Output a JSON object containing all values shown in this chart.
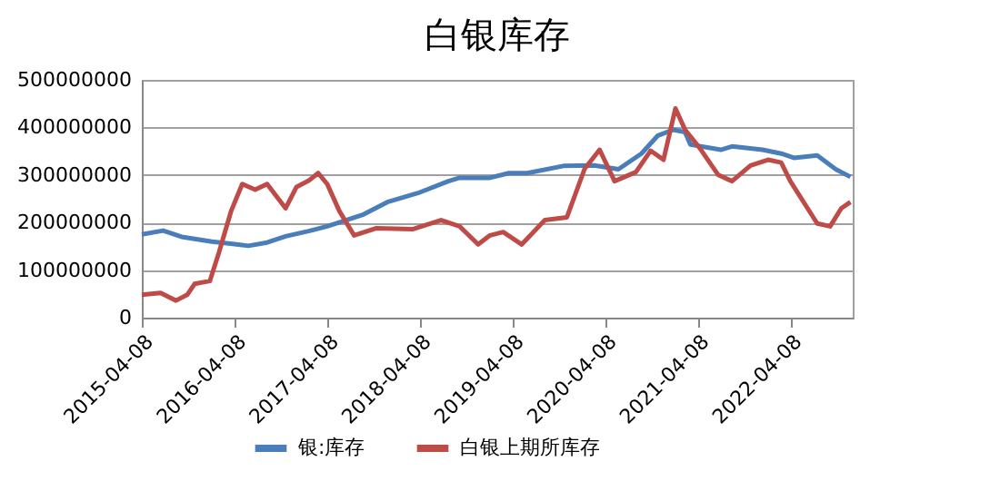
{
  "chart_data": {
    "type": "line",
    "title": "白银库存",
    "legend": "bottom",
    "grid": "y",
    "marker": "none",
    "line_style": "solid",
    "xlim": [
      "2015-04-08",
      "2022-12-10"
    ],
    "xticks": [
      "2015-04-08",
      "2016-04-08",
      "2017-04-08",
      "2018-04-08",
      "2019-04-08",
      "2020-04-08",
      "2021-04-08",
      "2022-04-08"
    ],
    "ylim": [
      0,
      500000000
    ],
    "yticks": [
      0,
      100000000,
      200000000,
      300000000,
      400000000,
      500000000
    ],
    "series": [
      {
        "name": "银:库存",
        "color": "#4a7ebb",
        "x": [
          "2015-04-08",
          "2015-07-01",
          "2015-09-12",
          "2016-01-10",
          "2016-04-15",
          "2016-06-01",
          "2016-08-14",
          "2016-10-26",
          "2017-01-25",
          "2017-04-08",
          "2017-08-29",
          "2017-12-01",
          "2018-04-01",
          "2018-07-30",
          "2018-09-12",
          "2019-01-10",
          "2019-03-25",
          "2019-06-06",
          "2019-10-26",
          "2020-02-25",
          "2020-05-30",
          "2020-08-29",
          "2020-11-02",
          "2021-01-01",
          "2021-02-17",
          "2021-03-10",
          "2021-07-08",
          "2021-08-21",
          "2021-12-19",
          "2022-03-03",
          "2022-04-22",
          "2022-07-23",
          "2022-10-04",
          "2022-12-01"
        ],
        "values": [
          175000000,
          183000000,
          170000000,
          160000000,
          154000000,
          151000000,
          158000000,
          171000000,
          182000000,
          192000000,
          217000000,
          243000000,
          262000000,
          287000000,
          294000000,
          294000000,
          304000000,
          304000000,
          319000000,
          320000000,
          312000000,
          345000000,
          383000000,
          395000000,
          390000000,
          364000000,
          353000000,
          360000000,
          353000000,
          345000000,
          336000000,
          341000000,
          312000000,
          296000000
        ]
      },
      {
        "name": "白银上期所库存",
        "color": "#be4b48",
        "x": [
          "2015-04-08",
          "2015-06-21",
          "2015-08-21",
          "2015-10-04",
          "2015-11-02",
          "2016-01-01",
          "2016-02-05",
          "2016-03-25",
          "2016-05-08",
          "2016-06-28",
          "2016-08-14",
          "2016-10-26",
          "2016-12-08",
          "2017-01-25",
          "2017-03-03",
          "2017-04-08",
          "2017-05-26",
          "2017-07-23",
          "2017-10-19",
          "2018-03-10",
          "2018-07-01",
          "2018-09-12",
          "2018-11-24",
          "2019-01-10",
          "2019-03-03",
          "2019-05-15",
          "2019-08-14",
          "2019-11-09",
          "2020-01-18",
          "2020-03-17",
          "2020-05-15",
          "2020-08-07",
          "2020-10-04",
          "2020-11-24",
          "2021-01-10",
          "2021-02-17",
          "2021-04-15",
          "2021-06-28",
          "2021-08-21",
          "2021-11-02",
          "2022-01-10",
          "2022-03-03",
          "2022-04-08",
          "2022-07-23",
          "2022-09-12",
          "2022-10-26",
          "2022-12-01"
        ],
        "values": [
          48000000,
          52000000,
          36000000,
          48000000,
          71000000,
          77000000,
          135000000,
          224000000,
          281000000,
          269000000,
          281000000,
          230000000,
          275000000,
          288000000,
          304000000,
          281000000,
          224000000,
          173000000,
          188000000,
          186000000,
          205000000,
          192000000,
          154000000,
          173000000,
          180000000,
          154000000,
          205000000,
          211000000,
          313000000,
          353000000,
          287000000,
          306000000,
          351000000,
          332000000,
          440000000,
          395000000,
          357000000,
          300000000,
          287000000,
          320000000,
          332000000,
          326000000,
          287000000,
          198000000,
          192000000,
          230000000,
          243000000
        ]
      }
    ]
  }
}
